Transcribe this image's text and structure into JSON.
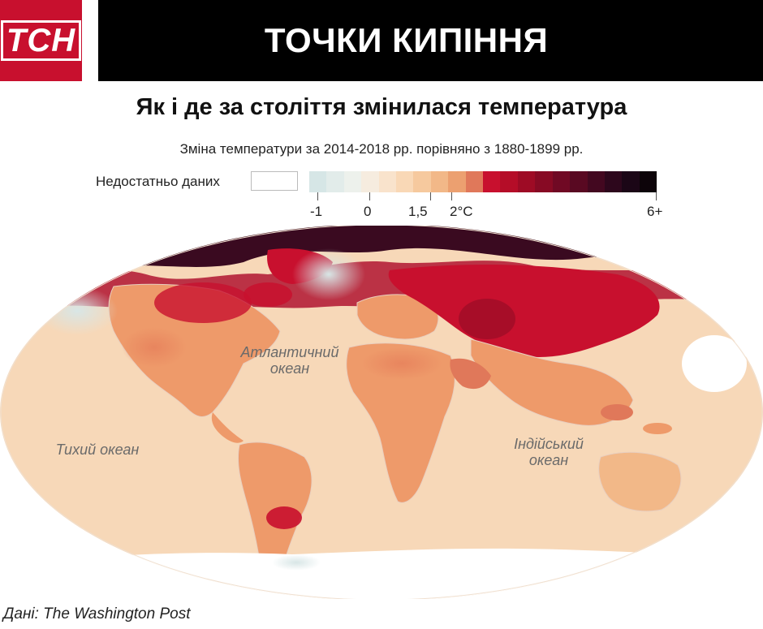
{
  "brand": {
    "logo_text": "ТСН",
    "logo_color": "#c8102e"
  },
  "header": {
    "title": "ТОЧКИ КИПІННЯ"
  },
  "subtitle": "Як і де за століття змінилася температура",
  "caption": "Зміна температури за 2014-2018 рр. порівняно з 1880-1899 рр.",
  "legend": {
    "no_data_label": "Недостатньо даних",
    "colors": [
      "#d6e6e6",
      "#e2ecea",
      "#edf1ec",
      "#f6ecdf",
      "#f9e3cc",
      "#f9d8b6",
      "#f6c99e",
      "#f2b888",
      "#eca070",
      "#e0785a",
      "#c8102e",
      "#b50d28",
      "#9e0b25",
      "#870a24",
      "#700924",
      "#590922",
      "#430820",
      "#2d071c",
      "#1b0616",
      "#0d0409"
    ],
    "ticks": [
      {
        "label": "-1"
      },
      {
        "label": "0"
      },
      {
        "label": "1,5"
      },
      {
        "label": "2°C"
      },
      {
        "label": "6+"
      }
    ]
  },
  "map": {
    "ocean_labels": {
      "atlantic_1": "Атлантичний",
      "atlantic_2": "океан",
      "pacific": "Тихий океан",
      "indian_1": "Індійський",
      "indian_2": "океан"
    },
    "colors": {
      "ocean_base": "#f7d8b8",
      "land_warm": "#ee9a6a",
      "land_hot": "#c8102e",
      "arctic": "#3a0a20",
      "cool": "#dde8e6",
      "coast": "#e8cfc0"
    }
  },
  "source": "Дані: The Washington Post"
}
